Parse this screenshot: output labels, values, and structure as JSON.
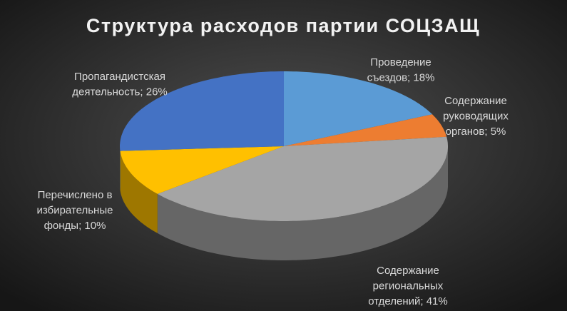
{
  "chart_data": {
    "type": "pie3d",
    "title": "Структура расходов партии СОЦЗАЩ",
    "values": [
      18,
      5,
      41,
      10,
      26
    ],
    "value_labels": [
      [
        "Проведение",
        "съездов; 18%"
      ],
      [
        "Содержание",
        "руководящих",
        "органов; 5%"
      ],
      [
        "Содержание",
        "региональных",
        "отделений; 41%"
      ],
      [
        "Перечислено в",
        "избирательные",
        "фонды; 10%"
      ],
      [
        "Пропагандистская",
        "деятельность; 26%"
      ]
    ],
    "colors": [
      "#5b9bd5",
      "#ed7d31",
      "#a5a5a5",
      "#ffc000",
      "#4472c4"
    ]
  }
}
